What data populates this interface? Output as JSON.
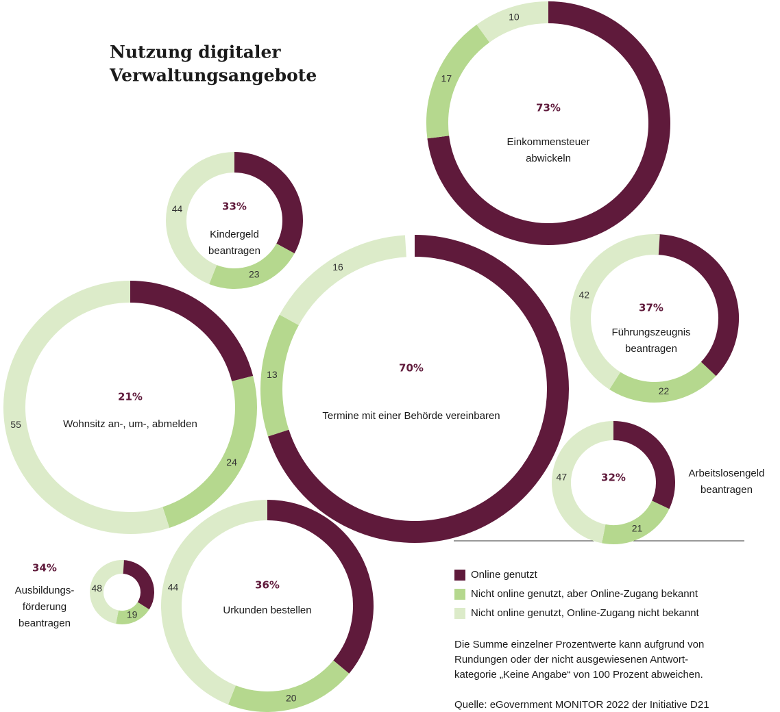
{
  "title": [
    "Nutzung digitaler",
    "Verwaltungsangebote"
  ],
  "legend": [
    {
      "name": "Online genutzt",
      "color": "#5f1a3b"
    },
    {
      "name": "Nicht online genutzt, aber Online-Zugang bekannt",
      "color": "#b5d88e"
    },
    {
      "name": "Nicht online genutzt, Online-Zugang nicht bekannt",
      "color": "#dcebc9"
    }
  ],
  "note": [
    "Die Summe einzelner Prozentwerte kann aufgrund von",
    "Rundungen oder der nicht ausgewiesenen Antwort-",
    "kategorie „Keine Angabe“ von 100 Prozent abweichen."
  ],
  "source": "Quelle: eGovernment MONITOR 2022 der Initiative D21",
  "chart_data": [
    {
      "type": "donut",
      "label": [
        "Einkommensteuer",
        "abwickeln"
      ],
      "values": [
        73,
        17,
        10
      ],
      "value_labels": [
        "73%",
        "17",
        "10"
      ]
    },
    {
      "type": "donut",
      "label": [
        "Kindergeld",
        "beantragen"
      ],
      "values": [
        33,
        23,
        44
      ],
      "value_labels": [
        "33%",
        "23",
        "44"
      ]
    },
    {
      "type": "donut",
      "label": [
        "Termine mit einer Behörde vereinbaren"
      ],
      "values": [
        70,
        13,
        16
      ],
      "value_labels": [
        "70%",
        "13",
        "16"
      ]
    },
    {
      "type": "donut",
      "label": [
        "Wohnsitz an-, um-, abmelden"
      ],
      "values": [
        21,
        24,
        55
      ],
      "value_labels": [
        "21%",
        "24",
        "55"
      ]
    },
    {
      "type": "donut",
      "label": [
        "Führungszeugnis",
        "beantragen"
      ],
      "values": [
        37,
        22,
        42
      ],
      "value_labels": [
        "37%",
        "22",
        "42"
      ]
    },
    {
      "type": "donut",
      "label": [
        "Arbeitslosengeld",
        "beantragen"
      ],
      "values": [
        32,
        21,
        47
      ],
      "value_labels": [
        "32%",
        "21",
        "47"
      ]
    },
    {
      "type": "donut",
      "label": [
        "Ausbildungs-",
        "förderung",
        "beantragen"
      ],
      "values": [
        34,
        19,
        48
      ],
      "value_labels": [
        "34%",
        "19",
        "48"
      ]
    },
    {
      "type": "donut",
      "label": [
        "Urkunden bestellen"
      ],
      "values": [
        36,
        20,
        44
      ],
      "value_labels": [
        "36%",
        "20",
        "44"
      ]
    }
  ]
}
